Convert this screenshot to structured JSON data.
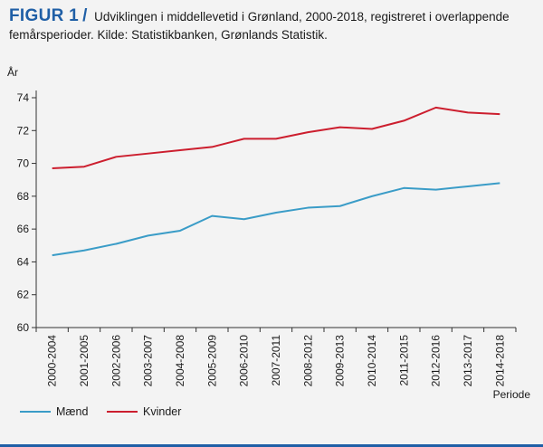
{
  "figure": {
    "label": "FIGUR 1",
    "slash": "/",
    "caption": "Udviklingen i middellevetid i Grønland, 2000-2018, registreret i overlappende femårsperioder. Kilde: Statistikbanken, Grønlands Statistik."
  },
  "colors": {
    "maend": "#3a9cc7",
    "kvinder": "#cc1e2e",
    "accent": "#1f5fa6"
  },
  "chart_data": {
    "type": "line",
    "title": "",
    "ylabel": "År",
    "xlabel": "Periode",
    "ylim": [
      60,
      74
    ],
    "yticks": [
      60,
      62,
      64,
      66,
      68,
      70,
      72,
      74
    ],
    "grid": false,
    "legend_position": "bottom-left",
    "categories": [
      "2000-2004",
      "2001-2005",
      "2002-2006",
      "2003-2007",
      "2004-2008",
      "2005-2009",
      "2006-2010",
      "2007-2011",
      "2008-2012",
      "2009-2013",
      "2010-2014",
      "2011-2015",
      "2012-2016",
      "2013-2017",
      "2014-2018"
    ],
    "series": [
      {
        "name": "Mænd",
        "values": [
          64.4,
          64.7,
          65.1,
          65.6,
          65.9,
          66.8,
          66.6,
          67.0,
          67.3,
          67.4,
          68.0,
          68.5,
          68.4,
          68.6,
          68.8
        ]
      },
      {
        "name": "Kvinder",
        "values": [
          69.7,
          69.8,
          70.4,
          70.6,
          70.8,
          71.0,
          71.5,
          71.5,
          71.9,
          72.2,
          72.1,
          72.6,
          73.4,
          73.1,
          73.0
        ]
      }
    ]
  }
}
